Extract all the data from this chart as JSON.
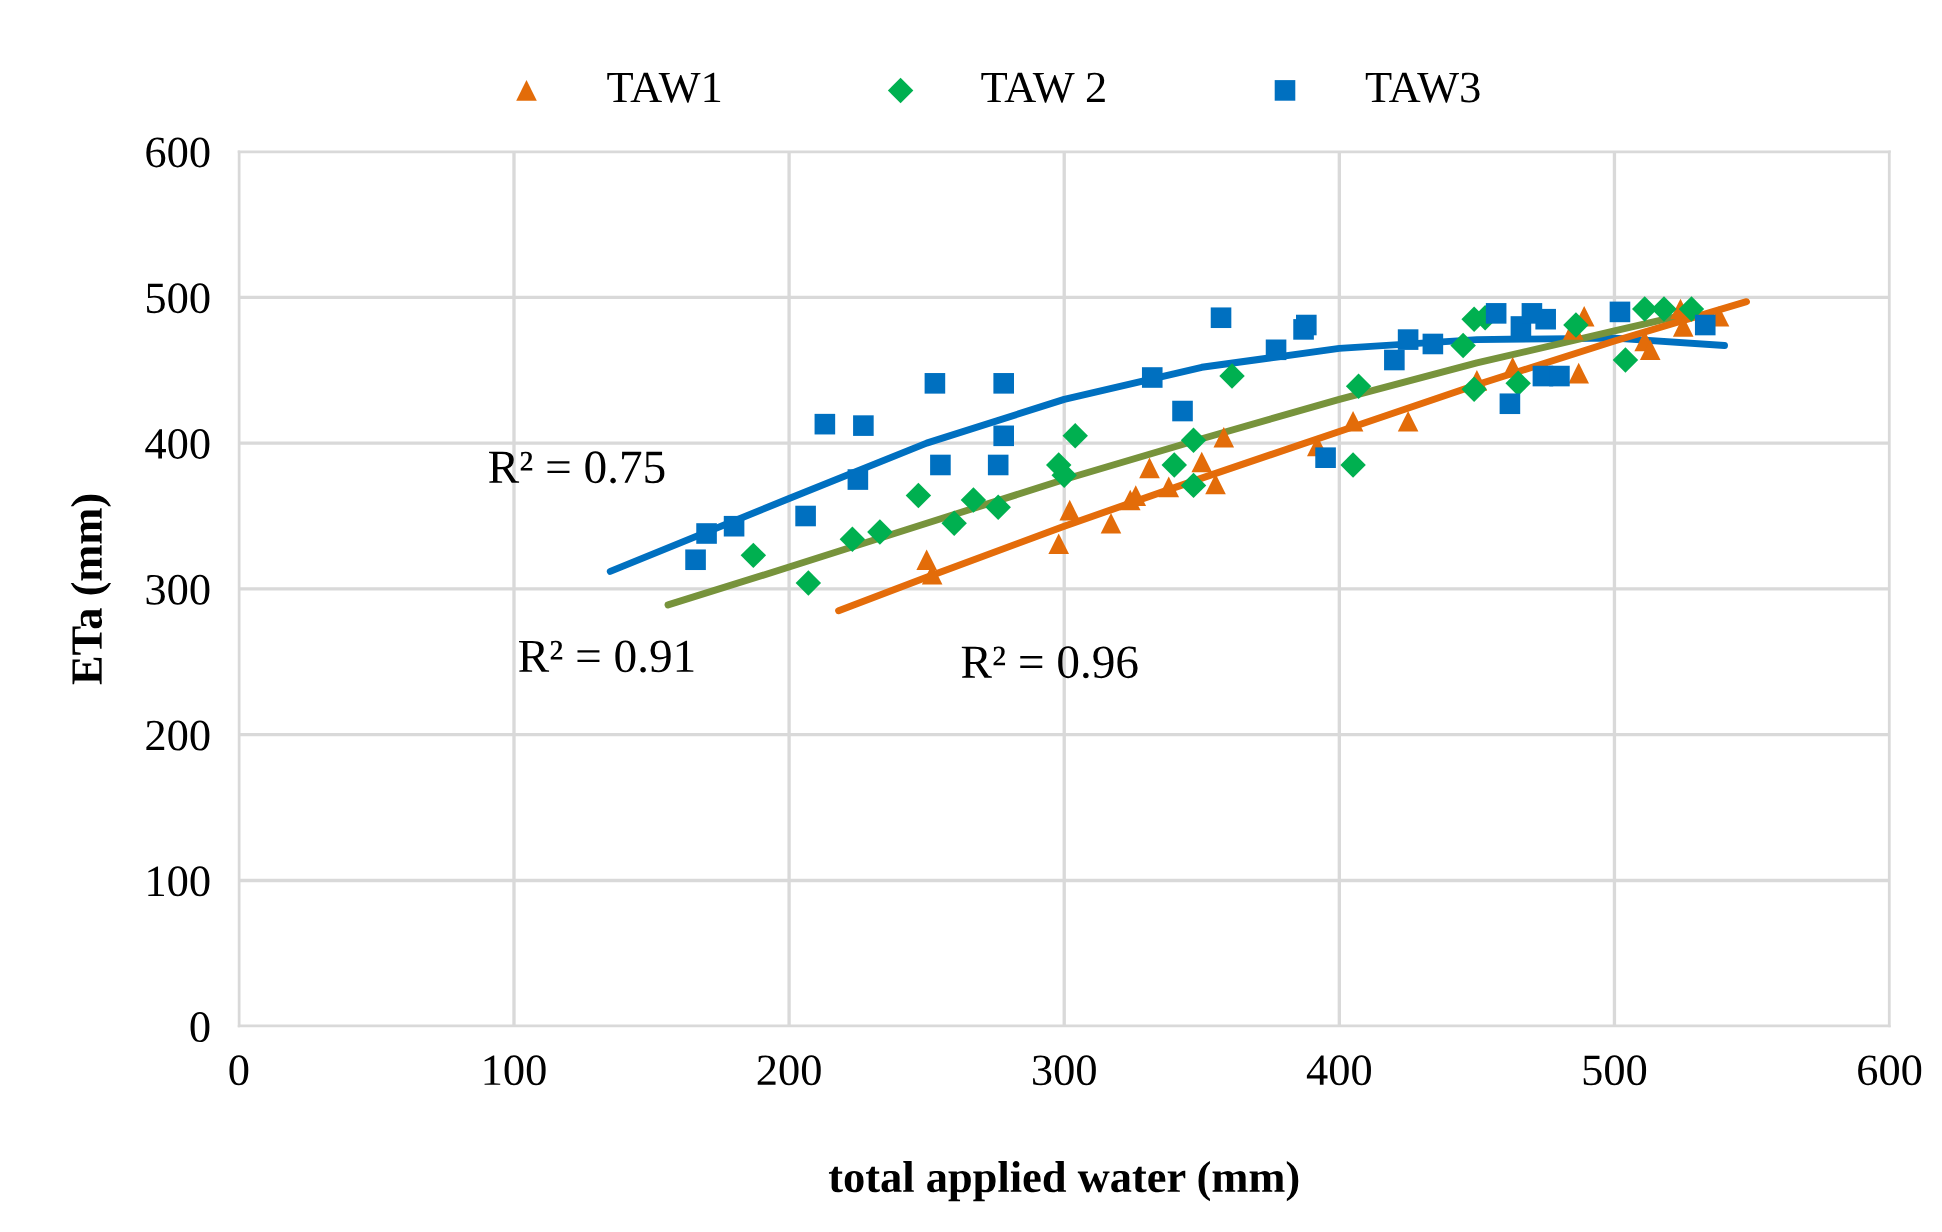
{
  "chart_data": {
    "type": "scatter",
    "xlabel": "total applied water (mm)",
    "ylabel": "ETa (mm)",
    "xlim": [
      0,
      600
    ],
    "ylim": [
      0,
      600
    ],
    "xticks": [
      0,
      100,
      200,
      300,
      400,
      500,
      600
    ],
    "yticks": [
      0,
      100,
      200,
      300,
      400,
      500,
      600
    ],
    "grid": true,
    "legend": "top",
    "series": [
      {
        "name": "TAW1",
        "marker": "triangle",
        "color": "#e36c09",
        "x": [
          250,
          252,
          298,
          302,
          317,
          324,
          326,
          331,
          338,
          350,
          355,
          358,
          392,
          405,
          425,
          450,
          463,
          485,
          487,
          489,
          511,
          513,
          524,
          525,
          538
        ],
        "values": [
          320,
          310,
          331,
          354,
          345,
          361,
          364,
          383,
          370,
          387,
          372,
          404,
          398,
          415,
          415,
          443,
          452,
          478,
          448,
          487,
          470,
          464,
          492,
          480,
          487
        ]
      },
      {
        "name": "TAW 2",
        "marker": "diamond",
        "color": "#00b050",
        "x": [
          187,
          207,
          223,
          233,
          247,
          260,
          267,
          276,
          298,
          300,
          304,
          340,
          347,
          347,
          361,
          405,
          407,
          445,
          449,
          449,
          453,
          465,
          486,
          504,
          511,
          518,
          528
        ],
        "values": [
          323,
          304,
          334,
          339,
          364,
          345,
          361,
          356,
          385,
          378,
          405,
          385,
          371,
          402,
          446,
          385,
          439,
          467,
          437,
          485,
          486,
          441,
          481,
          457,
          492,
          492,
          492
        ]
      },
      {
        "name": "TAW3",
        "marker": "square",
        "color": "#0070c0",
        "x": [
          166,
          170,
          180,
          206,
          213,
          225,
          227,
          253,
          255,
          276,
          278,
          278,
          332,
          343,
          357,
          377,
          387,
          388,
          395,
          420,
          425,
          434,
          457,
          462,
          466,
          470,
          474,
          475,
          480,
          502,
          533
        ],
        "values": [
          320,
          338,
          343,
          350,
          413,
          375,
          412,
          441,
          385,
          385,
          441,
          405,
          445,
          422,
          486,
          464,
          478,
          481,
          390,
          457,
          471,
          468,
          489,
          427,
          480,
          489,
          446,
          485,
          446,
          490,
          481
        ]
      },
      {
        "type": "line",
        "marker": "none",
        "color": "#0070c0",
        "x": [
          135,
          200,
          250,
          300,
          350,
          400,
          450,
          500,
          540
        ],
        "values": [
          312,
          362,
          400,
          430,
          452,
          465,
          471,
          472,
          467
        ]
      },
      {
        "type": "line",
        "marker": "none",
        "color": "#77933c",
        "x": [
          156,
          200,
          250,
          300,
          350,
          400,
          450,
          500,
          530
        ],
        "values": [
          289,
          315,
          345,
          375,
          403,
          430,
          455,
          477,
          490
        ]
      },
      {
        "type": "line",
        "marker": "none",
        "color": "#e46c0a",
        "x": [
          218,
          250,
          300,
          350,
          400,
          450,
          500,
          548
        ],
        "values": [
          285,
          308,
          343,
          376,
          408,
          440,
          470,
          497
        ]
      }
    ],
    "annotations": [
      "R² = 0.75",
      "R² = 0.91",
      "R² = 0.96"
    ]
  }
}
